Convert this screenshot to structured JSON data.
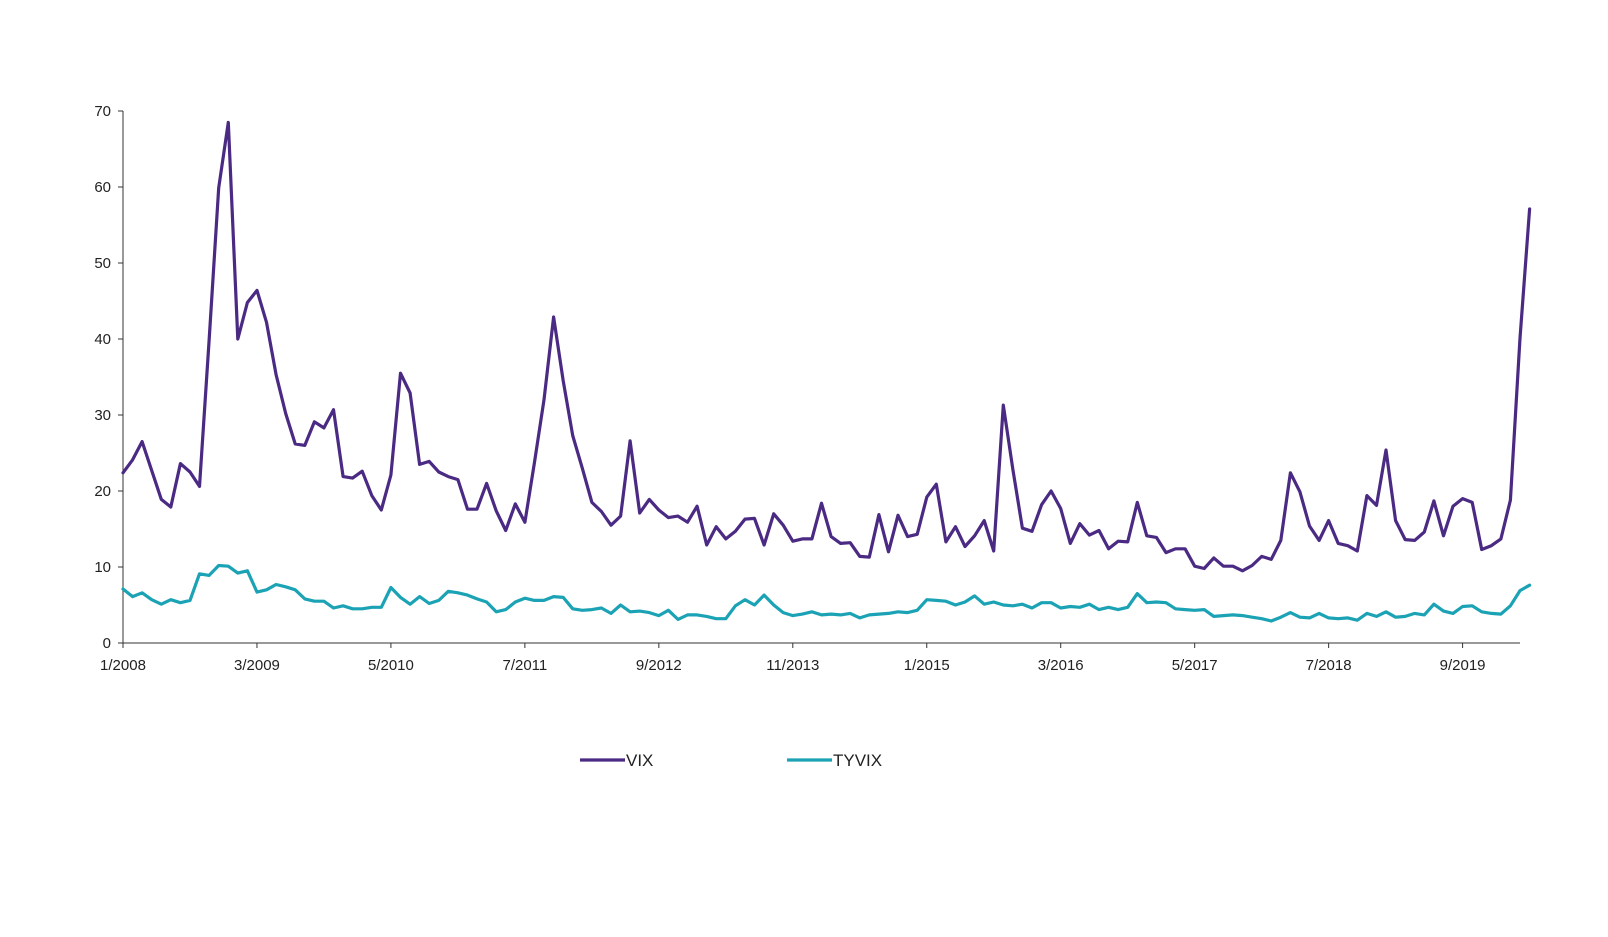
{
  "chart_data": {
    "type": "line",
    "title": "",
    "xlabel": "",
    "ylabel": "",
    "ylim": [
      0,
      70
    ],
    "yticks": [
      0,
      10,
      20,
      30,
      40,
      50,
      60,
      70
    ],
    "grid": false,
    "legend_position": "bottom-center",
    "x_start": "1/2008",
    "x_end": "3/2020",
    "x_tick_labels": [
      "1/2008",
      "3/2009",
      "5/2010",
      "7/2011",
      "9/2012",
      "11/2013",
      "1/2015",
      "3/2016",
      "5/2017",
      "7/2018",
      "9/2019"
    ],
    "series": [
      {
        "name": "VIX",
        "color": "#4b2a83",
        "values": [
          22.4,
          24.1,
          26.5,
          22.7,
          18.9,
          17.9,
          23.6,
          22.5,
          20.6,
          39.8,
          59.9,
          68.5,
          40.0,
          44.8,
          46.4,
          42.2,
          35.3,
          30.2,
          26.2,
          26.0,
          29.1,
          28.3,
          30.7,
          21.9,
          21.7,
          22.6,
          19.4,
          17.5,
          22.1,
          35.5,
          32.9,
          23.5,
          23.9,
          22.5,
          21.9,
          21.5,
          17.6,
          17.6,
          21.0,
          17.4,
          14.8,
          18.3,
          15.9,
          23.7,
          32.0,
          42.9,
          34.5,
          27.3,
          23.0,
          18.5,
          17.3,
          15.5,
          16.7,
          26.6,
          17.1,
          18.9,
          17.5,
          16.5,
          16.7,
          15.9,
          18.0,
          12.9,
          15.3,
          13.7,
          14.7,
          16.3,
          16.4,
          12.9,
          17.0,
          15.5,
          13.4,
          13.7,
          13.7,
          18.4,
          14.0,
          13.1,
          13.2,
          11.4,
          11.3,
          16.9,
          12.0,
          16.8,
          14.0,
          14.3,
          19.2,
          20.9,
          13.3,
          15.3,
          12.7,
          14.1,
          16.1,
          12.1,
          31.3,
          22.8,
          15.1,
          14.7,
          18.2,
          20.0,
          17.7,
          13.1,
          15.7,
          14.2,
          14.8,
          12.4,
          13.4,
          13.3,
          18.5,
          14.1,
          13.9,
          11.9,
          12.4,
          12.4,
          10.1,
          9.8,
          11.2,
          10.1,
          10.1,
          9.5,
          10.2,
          11.4,
          11.0,
          13.5,
          22.4,
          19.9,
          15.4,
          13.5,
          16.1,
          13.1,
          12.8,
          12.1,
          19.4,
          18.1,
          25.4,
          16.1,
          13.6,
          13.5,
          14.6,
          18.7,
          14.1,
          18.0,
          19.0,
          18.5,
          12.3,
          12.8,
          13.7,
          18.8,
          40.1,
          57.1
        ]
      },
      {
        "name": "TYVIX",
        "color": "#1ba3b5",
        "values": [
          7.1,
          6.1,
          6.6,
          5.7,
          5.1,
          5.7,
          5.3,
          5.6,
          9.1,
          8.9,
          10.2,
          10.1,
          9.2,
          9.5,
          6.7,
          7.0,
          7.7,
          7.4,
          7.0,
          5.8,
          5.5,
          5.5,
          4.6,
          4.9,
          4.5,
          4.5,
          4.7,
          4.7,
          7.3,
          6.0,
          5.1,
          6.1,
          5.2,
          5.6,
          6.8,
          6.6,
          6.3,
          5.8,
          5.4,
          4.1,
          4.4,
          5.4,
          5.9,
          5.6,
          5.6,
          6.1,
          6.0,
          4.5,
          4.3,
          4.4,
          4.6,
          3.9,
          5.0,
          4.1,
          4.2,
          4.0,
          3.6,
          4.3,
          3.1,
          3.7,
          3.7,
          3.5,
          3.2,
          3.2,
          4.9,
          5.7,
          5.0,
          6.3,
          5.0,
          4.0,
          3.6,
          3.8,
          4.1,
          3.7,
          3.8,
          3.7,
          3.9,
          3.3,
          3.7,
          3.8,
          3.9,
          4.1,
          4.0,
          4.3,
          5.7,
          5.6,
          5.5,
          5.0,
          5.4,
          6.2,
          5.1,
          5.4,
          5.0,
          4.9,
          5.1,
          4.6,
          5.3,
          5.3,
          4.6,
          4.8,
          4.7,
          5.1,
          4.4,
          4.7,
          4.4,
          4.7,
          6.5,
          5.3,
          5.4,
          5.3,
          4.5,
          4.4,
          4.3,
          4.4,
          3.5,
          3.6,
          3.7,
          3.6,
          3.4,
          3.2,
          2.9,
          3.4,
          4.0,
          3.4,
          3.3,
          3.9,
          3.3,
          3.2,
          3.3,
          3.0,
          3.9,
          3.5,
          4.1,
          3.4,
          3.5,
          3.9,
          3.7,
          5.1,
          4.2,
          3.9,
          4.8,
          4.9,
          4.1,
          3.9,
          3.8,
          4.9,
          6.9,
          7.6
        ]
      }
    ]
  }
}
